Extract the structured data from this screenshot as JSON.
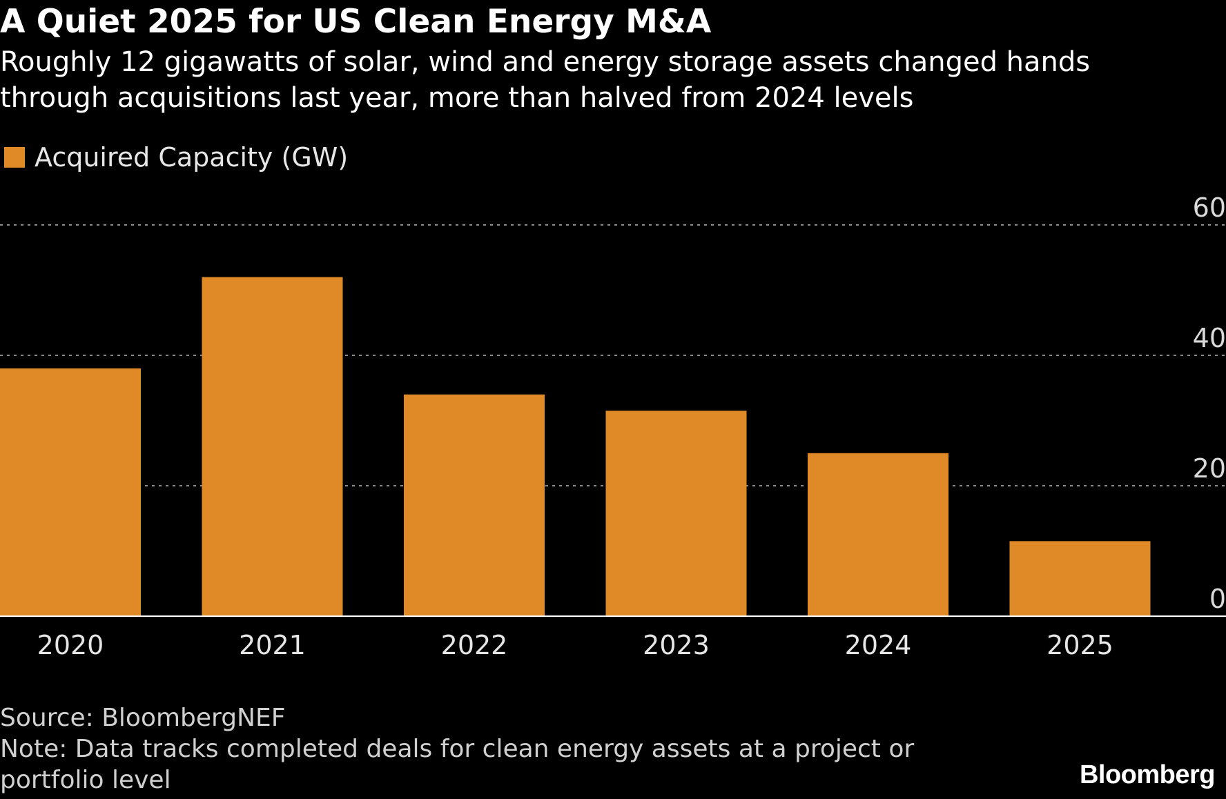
{
  "chart_data": {
    "type": "bar",
    "title": "A Quiet 2025 for US Clean Energy M&A",
    "subtitle_lines": [
      "Roughly 12 gigawatts of solar, wind and energy storage assets changed hands",
      "through acquisitions last year, more than halved from 2024 levels"
    ],
    "legend": [
      "Acquired Capacity (GW)"
    ],
    "categories": [
      "2020",
      "2021",
      "2022",
      "2023",
      "2024",
      "2025"
    ],
    "series": [
      {
        "name": "Acquired Capacity (GW)",
        "values": [
          38,
          52,
          34,
          31.5,
          25,
          11.5
        ]
      }
    ],
    "xlabel": "",
    "ylabel": "",
    "ylim": [
      0,
      60
    ],
    "yticks": [
      0,
      20,
      40,
      60
    ],
    "ytick_labels": [
      "0",
      "20",
      "40",
      "60"
    ],
    "grid": true,
    "y_axis_side": "right",
    "legend_position": "top-left"
  },
  "colors": {
    "bar": "#E08A27",
    "background": "#000000",
    "grid": "#8a8a8a",
    "axis": "#ffffff",
    "text": "#ffffff"
  },
  "footer": {
    "source": "Source: BloombergNEF",
    "note_lines": [
      "Note: Data tracks completed deals for clean energy assets at a project or",
      "portfolio level"
    ]
  },
  "brand": "Bloomberg"
}
